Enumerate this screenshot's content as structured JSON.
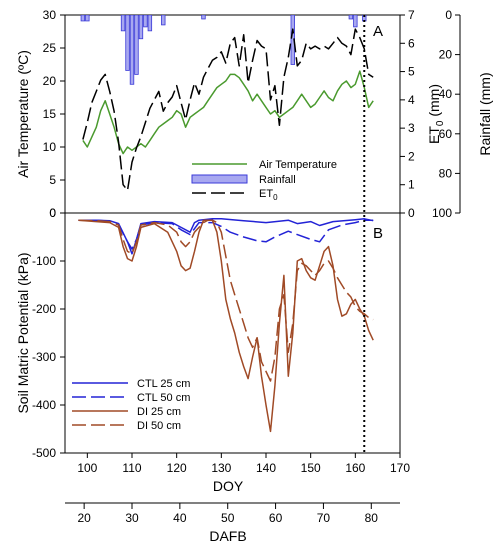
{
  "chart_data": [
    {
      "panel": "A",
      "type": "line",
      "panel_label": "A",
      "xlabel": "DOY",
      "xlim": [
        95,
        170
      ],
      "axes": {
        "left": {
          "label": "Air Temperature (ºC)",
          "ylim": [
            0,
            30
          ],
          "ticks": [
            0,
            5,
            10,
            15,
            20,
            25,
            30
          ],
          "tick_labels": [
            "0",
            "5",
            "10",
            "15",
            "20",
            "25",
            "30"
          ]
        },
        "right1": {
          "label": "ET0 (mm)",
          "ylim": [
            0,
            7
          ],
          "ticks": [
            0,
            1,
            2,
            3,
            4,
            5,
            6,
            7
          ],
          "tick_labels": [
            "0",
            "1",
            "2",
            "3",
            "4",
            "5",
            "6",
            "7"
          ]
        },
        "right2": {
          "label": "Rainfall (mm)",
          "ylim": [
            100,
            0
          ],
          "inverted": true,
          "ticks": [
            0,
            20,
            40,
            60,
            80,
            100
          ],
          "tick_labels": [
            "0",
            "20",
            "40",
            "60",
            "80",
            "100"
          ]
        }
      },
      "legend": {
        "placement": "bottom-center",
        "entries": [
          "Air Temperature",
          "Rainfall",
          "ET0"
        ]
      },
      "colors": {
        "air_temperature": "#4a9a2e",
        "rainfall": "#3a3ad8",
        "rainfall_fill": "#a8a8f0",
        "et0": "#000000"
      },
      "series": [
        {
          "name": "Air Temperature",
          "axis": "left",
          "style": "solid",
          "x": [
            99,
            100,
            101,
            102,
            103,
            104,
            105,
            106,
            107,
            108,
            109,
            110,
            111,
            112,
            113,
            114,
            115,
            116,
            117,
            118,
            119,
            120,
            121,
            122,
            123,
            124,
            125,
            126,
            127,
            128,
            129,
            130,
            131,
            132,
            133,
            134,
            135,
            136,
            137,
            138,
            139,
            140,
            141,
            142,
            143,
            144,
            145,
            146,
            147,
            148,
            149,
            150,
            151,
            152,
            153,
            154,
            155,
            156,
            157,
            158,
            159,
            160,
            161,
            162,
            163,
            164
          ],
          "y": [
            11,
            10,
            11.5,
            13,
            15.5,
            17,
            15,
            13,
            10.5,
            9,
            10,
            9.5,
            10,
            10.5,
            10,
            11,
            12,
            13,
            13.5,
            14,
            14.5,
            15.5,
            15,
            13,
            14.5,
            15,
            15.5,
            16,
            17,
            18,
            19,
            19.5,
            20,
            21,
            21,
            20.5,
            19.5,
            18.5,
            17,
            18,
            17,
            16,
            15,
            15.5,
            14.5,
            15,
            15.5,
            16,
            17,
            18,
            17,
            16,
            16.5,
            17.5,
            18.5,
            17.5,
            17,
            18.5,
            19.5,
            20,
            19,
            19.5,
            21.5,
            19,
            16,
            17
          ]
        },
        {
          "name": "ET0",
          "axis": "right1",
          "style": "dashed",
          "x": [
            99,
            100,
            101,
            102,
            103,
            104,
            105,
            106,
            107,
            108,
            109,
            110,
            111,
            112,
            113,
            114,
            115,
            116,
            117,
            118,
            119,
            120,
            121,
            122,
            123,
            124,
            125,
            126,
            127,
            128,
            129,
            130,
            131,
            132,
            133,
            134,
            135,
            136,
            137,
            138,
            139,
            140,
            141,
            142,
            143,
            144,
            145,
            146,
            147,
            148,
            149,
            150,
            151,
            152,
            153,
            154,
            155,
            156,
            157,
            158,
            159,
            160,
            161,
            162,
            163,
            164
          ],
          "y": [
            2.6,
            3.2,
            3.9,
            4.3,
            4.7,
            4.9,
            4.3,
            3.6,
            2.5,
            1.0,
            0.8,
            1.8,
            2.3,
            2.7,
            3.2,
            3.7,
            4.0,
            4.3,
            3.6,
            3.9,
            4.1,
            4.5,
            3.9,
            3.3,
            4.0,
            4.6,
            4.2,
            4.8,
            5.1,
            5.4,
            5.5,
            5.7,
            5.3,
            6.0,
            6.2,
            5.2,
            6.3,
            4.6,
            5.4,
            6.1,
            5.9,
            5.8,
            4.0,
            4.5,
            3.1,
            4.8,
            5.5,
            6.5,
            5.2,
            5.4,
            6.0,
            5.8,
            5.9,
            5.8,
            5.9,
            5.8,
            6.0,
            6.2,
            6.0,
            5.9,
            5.6,
            6.5,
            6.2,
            5.8,
            4.9,
            4.8
          ]
        },
        {
          "name": "Rainfall",
          "axis": "right2",
          "type": "bar",
          "x": [
            99,
            100,
            108,
            109,
            110,
            111,
            112,
            113,
            114,
            117,
            126,
            146,
            159,
            160,
            162
          ],
          "y": [
            3,
            3,
            8,
            28,
            35,
            30,
            12,
            6,
            8,
            5,
            2,
            25,
            2,
            6,
            3
          ]
        }
      ]
    },
    {
      "panel": "B",
      "type": "line",
      "panel_label": "B",
      "ylabel": "Soil Matric Potential (kPa)",
      "xlabel": "DOY",
      "secondary_xlabel": "DAFB",
      "xlim": [
        95,
        170
      ],
      "ylim": [
        -500,
        0
      ],
      "x_ticks": [
        100,
        110,
        120,
        130,
        140,
        150,
        160,
        170
      ],
      "x_tick_labels": [
        "100",
        "110",
        "120",
        "130",
        "140",
        "150",
        "160",
        "170"
      ],
      "y_ticks": [
        -500,
        -400,
        -300,
        -200,
        -100,
        0
      ],
      "y_tick_labels": [
        "-500",
        "-400",
        "-300",
        "-200",
        "-100",
        "0"
      ],
      "dafb_ticks": [
        20,
        30,
        40,
        50,
        60,
        70,
        80
      ],
      "dafb_tick_labels": [
        "20",
        "30",
        "40",
        "50",
        "60",
        "70",
        "80"
      ],
      "dafb_range": [
        16,
        86
      ],
      "vertical_marker_doy": 162,
      "legend": {
        "placement": "bottom-left",
        "entries": [
          "CTL 25 cm",
          "CTL 50 cm",
          "DI 25 cm",
          "DI 50 cm"
        ]
      },
      "colors": {
        "ctl": "#2323d6",
        "di": "#a04a26",
        "marker": "#000000"
      },
      "series": [
        {
          "name": "CTL 25 cm",
          "style": "solid",
          "color": "ctl",
          "x": [
            98,
            102,
            105,
            107,
            109,
            110,
            111,
            112,
            115,
            119,
            121,
            123,
            124,
            125,
            128,
            130,
            135,
            140,
            145,
            147,
            150,
            152,
            155,
            160,
            162,
            163,
            164
          ],
          "y": [
            -15,
            -15,
            -16,
            -22,
            -60,
            -85,
            -55,
            -22,
            -18,
            -20,
            -30,
            -40,
            -20,
            -15,
            -12,
            -12,
            -16,
            -20,
            -15,
            -22,
            -18,
            -26,
            -18,
            -14,
            -12,
            -14,
            -16
          ]
        },
        {
          "name": "CTL 50 cm",
          "style": "dashed",
          "color": "ctl",
          "x": [
            98,
            102,
            105,
            107,
            109,
            110,
            111,
            112,
            115,
            119,
            121,
            123,
            125,
            128,
            130,
            132,
            135,
            138,
            140,
            142,
            145,
            147,
            150,
            152,
            154,
            157,
            160,
            162,
            164
          ],
          "y": [
            -15,
            -15,
            -17,
            -25,
            -60,
            -75,
            -55,
            -25,
            -20,
            -22,
            -35,
            -45,
            -20,
            -20,
            -28,
            -40,
            -50,
            -58,
            -60,
            -50,
            -38,
            -45,
            -55,
            -60,
            -35,
            -25,
            -20,
            -15,
            -15
          ]
        },
        {
          "name": "DI 25 cm",
          "style": "solid",
          "color": "di",
          "x": [
            98,
            102,
            105,
            107,
            108,
            109,
            110,
            111,
            112,
            115,
            118,
            120,
            121,
            122,
            123,
            124,
            125,
            126,
            127,
            128,
            129,
            130,
            131,
            132,
            133,
            134,
            135,
            136,
            137,
            138,
            139,
            140,
            141,
            142,
            143,
            144,
            145,
            146,
            147,
            148,
            149,
            150,
            151,
            152,
            153,
            154,
            155,
            156,
            157,
            158,
            159,
            160,
            161,
            162,
            163,
            164
          ],
          "y": [
            -15,
            -18,
            -20,
            -30,
            -70,
            -95,
            -100,
            -70,
            -30,
            -22,
            -40,
            -80,
            -110,
            -120,
            -115,
            -80,
            -40,
            -15,
            -15,
            -15,
            -40,
            -100,
            -180,
            -220,
            -250,
            -290,
            -320,
            -345,
            -300,
            -260,
            -340,
            -400,
            -455,
            -360,
            -230,
            -130,
            -340,
            -250,
            -100,
            -95,
            -120,
            -135,
            -140,
            -110,
            -80,
            -70,
            -110,
            -180,
            -215,
            -210,
            -190,
            -180,
            -200,
            -215,
            -245,
            -265
          ]
        },
        {
          "name": "DI 50 cm",
          "style": "dashed",
          "color": "di",
          "x": [
            98,
            102,
            105,
            107,
            108,
            109,
            110,
            111,
            112,
            115,
            118,
            120,
            121,
            122,
            123,
            124,
            125,
            126,
            127,
            128,
            129,
            130,
            131,
            132,
            133,
            134,
            135,
            136,
            137,
            138,
            139,
            140,
            141,
            142,
            143,
            144,
            145,
            146,
            147,
            148,
            149,
            150,
            151,
            152,
            153,
            154,
            155,
            156,
            157,
            158,
            159,
            160,
            161,
            162,
            163,
            164
          ],
          "y": [
            -15,
            -16,
            -18,
            -25,
            -55,
            -80,
            -85,
            -60,
            -25,
            -20,
            -25,
            -40,
            -60,
            -70,
            -60,
            -40,
            -30,
            -20,
            -15,
            -15,
            -20,
            -40,
            -90,
            -140,
            -170,
            -200,
            -230,
            -260,
            -280,
            -260,
            -310,
            -330,
            -350,
            -300,
            -200,
            -170,
            -290,
            -230,
            -120,
            -105,
            -110,
            -120,
            -130,
            -120,
            -105,
            -100,
            -115,
            -135,
            -150,
            -165,
            -175,
            -195,
            -205,
            -210,
            -218,
            -222
          ]
        }
      ]
    }
  ]
}
